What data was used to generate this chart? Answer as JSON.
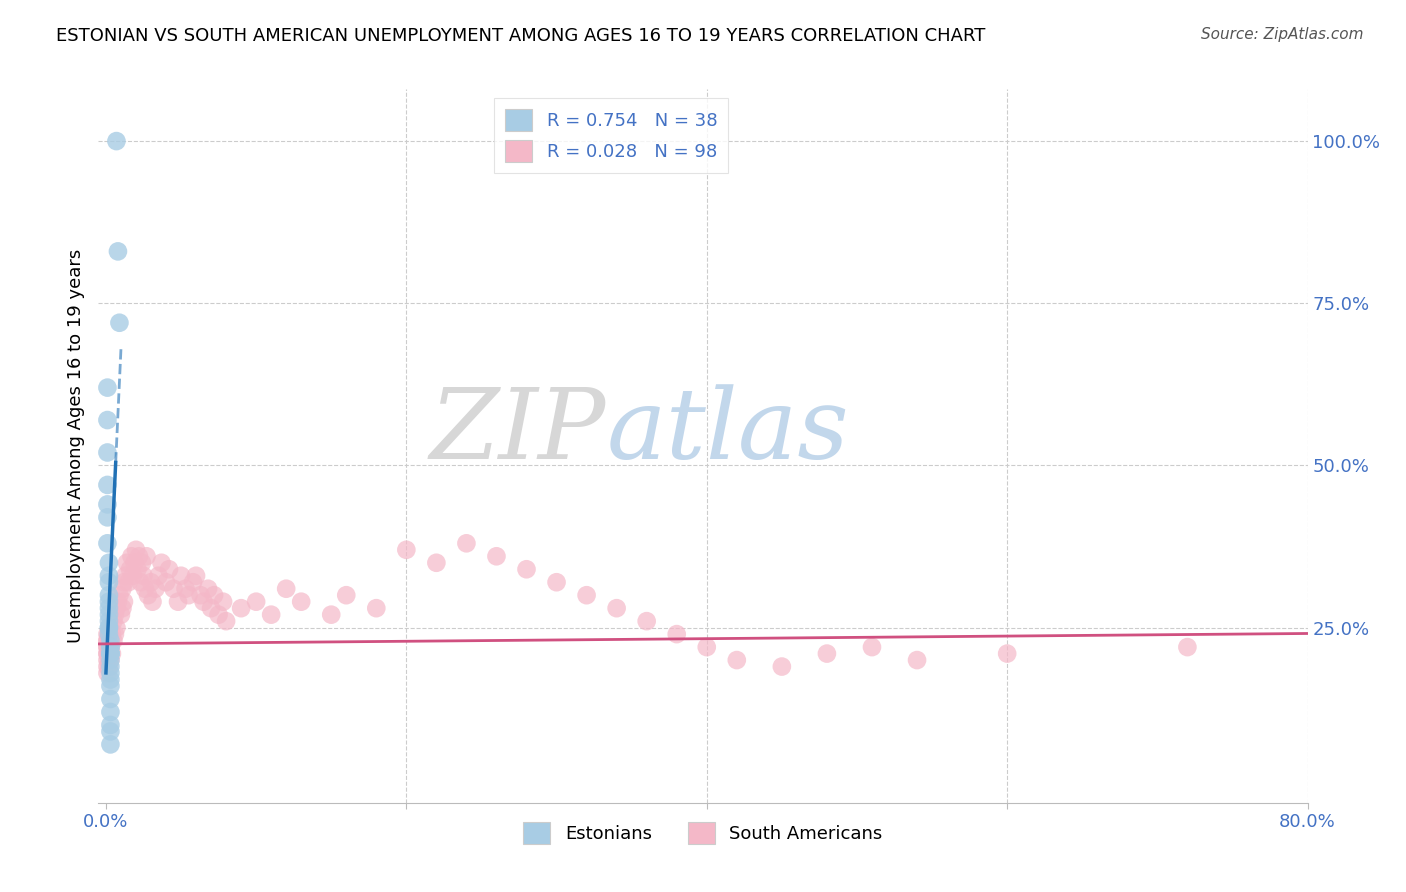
{
  "title": "ESTONIAN VS SOUTH AMERICAN UNEMPLOYMENT AMONG AGES 16 TO 19 YEARS CORRELATION CHART",
  "source": "Source: ZipAtlas.com",
  "ylabel": "Unemployment Among Ages 16 to 19 years",
  "blue_label": "Estonians",
  "pink_label": "South Americans",
  "blue_R": 0.754,
  "blue_N": 38,
  "pink_R": 0.028,
  "pink_N": 98,
  "blue_color": "#a8cce4",
  "pink_color": "#f4b8c8",
  "blue_line_color": "#2171b5",
  "pink_line_color": "#d05080",
  "right_axis_color": "#4472C4",
  "background_color": "#ffffff",
  "grid_color": "#cccccc",
  "watermark_zip_color": "#d8d8d8",
  "watermark_atlas_color": "#c0d4e8",
  "blue_scatter_x": [
    0.007,
    0.008,
    0.009,
    0.001,
    0.001,
    0.001,
    0.001,
    0.001,
    0.001,
    0.001,
    0.002,
    0.002,
    0.002,
    0.002,
    0.002,
    0.002,
    0.002,
    0.002,
    0.002,
    0.002,
    0.002,
    0.003,
    0.003,
    0.003,
    0.003,
    0.003,
    0.003,
    0.003,
    0.003,
    0.003,
    0.003,
    0.003,
    0.003,
    0.003,
    0.003,
    0.003,
    0.003,
    0.003
  ],
  "blue_scatter_y": [
    1.0,
    0.83,
    0.72,
    0.62,
    0.57,
    0.52,
    0.47,
    0.44,
    0.42,
    0.38,
    0.35,
    0.33,
    0.32,
    0.3,
    0.29,
    0.28,
    0.27,
    0.26,
    0.25,
    0.25,
    0.24,
    0.23,
    0.22,
    0.22,
    0.21,
    0.21,
    0.21,
    0.21,
    0.2,
    0.19,
    0.18,
    0.17,
    0.16,
    0.14,
    0.12,
    0.1,
    0.09,
    0.07
  ],
  "pink_scatter_x": [
    0.001,
    0.001,
    0.001,
    0.001,
    0.001,
    0.001,
    0.001,
    0.001,
    0.001,
    0.001,
    0.002,
    0.002,
    0.002,
    0.002,
    0.002,
    0.002,
    0.003,
    0.003,
    0.003,
    0.004,
    0.004,
    0.005,
    0.005,
    0.006,
    0.006,
    0.007,
    0.007,
    0.008,
    0.009,
    0.01,
    0.011,
    0.011,
    0.012,
    0.012,
    0.013,
    0.014,
    0.015,
    0.016,
    0.017,
    0.018,
    0.019,
    0.02,
    0.021,
    0.022,
    0.023,
    0.024,
    0.025,
    0.026,
    0.027,
    0.028,
    0.03,
    0.031,
    0.033,
    0.035,
    0.037,
    0.04,
    0.042,
    0.045,
    0.048,
    0.05,
    0.053,
    0.055,
    0.058,
    0.06,
    0.063,
    0.065,
    0.068,
    0.07,
    0.072,
    0.075,
    0.078,
    0.08,
    0.09,
    0.1,
    0.11,
    0.12,
    0.13,
    0.15,
    0.16,
    0.18,
    0.2,
    0.22,
    0.24,
    0.26,
    0.28,
    0.3,
    0.32,
    0.34,
    0.36,
    0.38,
    0.4,
    0.42,
    0.45,
    0.48,
    0.51,
    0.54,
    0.6,
    0.72
  ],
  "pink_scatter_y": [
    0.23,
    0.22,
    0.24,
    0.21,
    0.2,
    0.19,
    0.22,
    0.21,
    0.23,
    0.18,
    0.22,
    0.2,
    0.23,
    0.21,
    0.24,
    0.19,
    0.25,
    0.22,
    0.2,
    0.24,
    0.21,
    0.26,
    0.23,
    0.27,
    0.24,
    0.28,
    0.25,
    0.29,
    0.3,
    0.27,
    0.31,
    0.28,
    0.32,
    0.29,
    0.33,
    0.35,
    0.32,
    0.34,
    0.36,
    0.33,
    0.35,
    0.37,
    0.34,
    0.36,
    0.32,
    0.35,
    0.33,
    0.31,
    0.36,
    0.3,
    0.32,
    0.29,
    0.31,
    0.33,
    0.35,
    0.32,
    0.34,
    0.31,
    0.29,
    0.33,
    0.31,
    0.3,
    0.32,
    0.33,
    0.3,
    0.29,
    0.31,
    0.28,
    0.3,
    0.27,
    0.29,
    0.26,
    0.28,
    0.29,
    0.27,
    0.31,
    0.29,
    0.27,
    0.3,
    0.28,
    0.37,
    0.35,
    0.38,
    0.36,
    0.34,
    0.32,
    0.3,
    0.28,
    0.26,
    0.24,
    0.22,
    0.2,
    0.19,
    0.21,
    0.22,
    0.2,
    0.21,
    0.22
  ]
}
